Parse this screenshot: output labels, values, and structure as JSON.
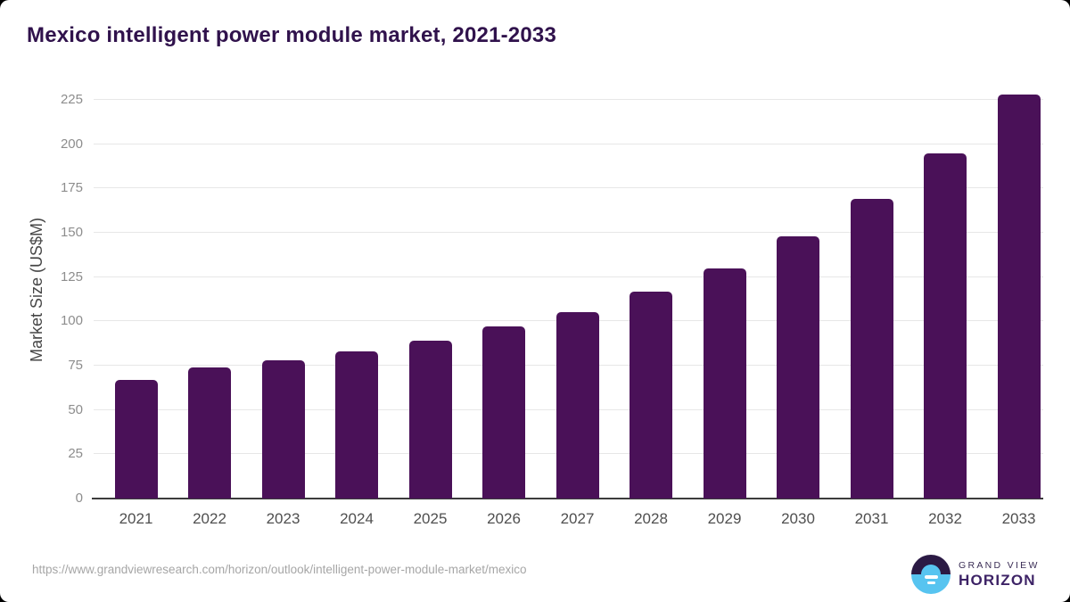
{
  "title": "Mexico intelligent power module market, 2021-2033",
  "chart_data": {
    "type": "bar",
    "title": "Mexico intelligent power module market, 2021-2033",
    "categories": [
      "2021",
      "2022",
      "2023",
      "2024",
      "2025",
      "2026",
      "2027",
      "2028",
      "2029",
      "2030",
      "2031",
      "2032",
      "2033"
    ],
    "values": [
      67,
      74,
      78,
      83,
      89,
      97,
      105,
      117,
      130,
      148,
      169,
      195,
      228
    ],
    "xlabel": "",
    "ylabel": "Market Size (US$M)",
    "ylim": [
      0,
      237
    ],
    "yticks": [
      0,
      25,
      50,
      75,
      100,
      125,
      150,
      175,
      200,
      225
    ],
    "grid": true,
    "legend": "none",
    "bar_color": "#4a1158"
  },
  "colors": {
    "title": "#30124c",
    "bar": "#4a1158",
    "gridline": "#e7e7e7",
    "axis_line": "#3c3c3c",
    "tick_label": "#8d8d8d",
    "x_label": "#4f4f4f",
    "logo_dark": "#2b1a44",
    "logo_blue": "#57c4f0"
  },
  "footer": {
    "source_url": "https://www.grandviewresearch.com/horizon/outlook/intelligent-power-module-market/mexico",
    "logo": {
      "line1": "GRAND VIEW",
      "line2": "HORIZON"
    }
  }
}
